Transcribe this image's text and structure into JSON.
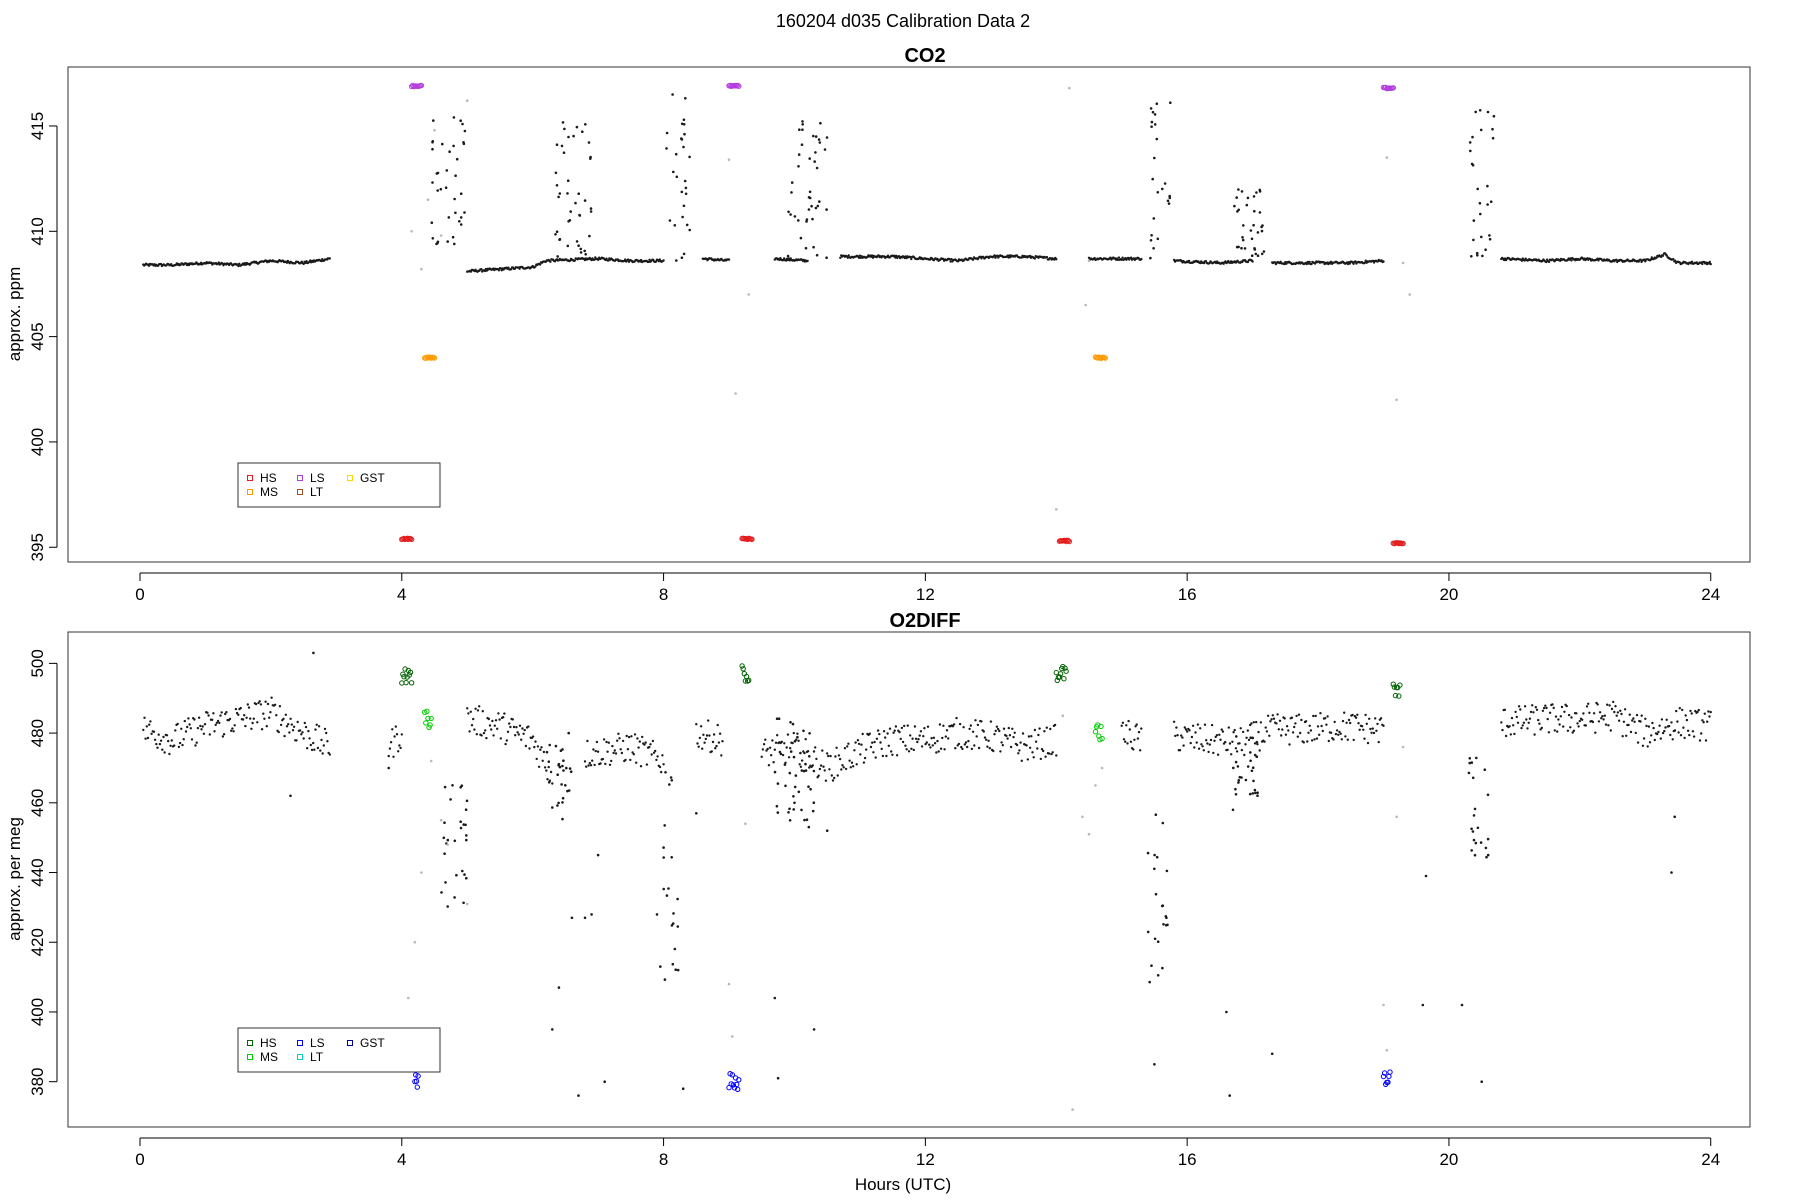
{
  "figure": {
    "title": "160204   d035   Calibration Data 2",
    "xlabel": "Hours (UTC)"
  },
  "chart_data": [
    {
      "id": "co2",
      "type": "scatter",
      "title": "CO2",
      "ylabel": "approx. ppm",
      "xlim": [
        -1.1,
        24.6
      ],
      "ylim": [
        394.3,
        417.8
      ],
      "xticks": [
        0,
        4,
        8,
        12,
        16,
        20,
        24
      ],
      "yticks": [
        395,
        400,
        405,
        410,
        415
      ],
      "legend": {
        "position": "bottom-left",
        "entries": [
          {
            "label": "HS",
            "color": "#e41a1c"
          },
          {
            "label": "MS",
            "color": "#ff9900"
          },
          {
            "label": "LS",
            "color": "#b33dde"
          },
          {
            "label": "LT",
            "color": "#a0522d"
          },
          {
            "label": "GST",
            "color": "#ffd700"
          }
        ]
      },
      "baseline": {
        "color": "#1a1a1a",
        "segments": [
          {
            "points": [
              [
                0.05,
                408.4
              ],
              [
                0.5,
                408.4
              ],
              [
                1.0,
                408.5
              ],
              [
                1.5,
                408.4
              ],
              [
                2.0,
                408.6
              ],
              [
                2.5,
                408.5
              ],
              [
                2.9,
                408.7
              ]
            ]
          },
          {
            "points": [
              [
                5.0,
                408.1
              ],
              [
                5.5,
                408.2
              ],
              [
                6.0,
                408.3
              ],
              [
                6.2,
                408.6
              ],
              [
                7.0,
                408.7
              ],
              [
                7.5,
                408.6
              ],
              [
                8.0,
                408.6
              ]
            ]
          },
          {
            "points": [
              [
                8.6,
                408.7
              ],
              [
                9.0,
                408.6
              ]
            ]
          },
          {
            "points": [
              [
                9.7,
                408.7
              ],
              [
                10.2,
                408.6
              ]
            ]
          },
          {
            "points": [
              [
                10.7,
                408.8
              ],
              [
                11.5,
                408.8
              ],
              [
                12.0,
                408.7
              ],
              [
                12.5,
                408.6
              ],
              [
                13.0,
                408.8
              ],
              [
                13.5,
                408.8
              ],
              [
                14.0,
                408.7
              ]
            ]
          },
          {
            "points": [
              [
                14.5,
                408.7
              ],
              [
                15.3,
                408.7
              ]
            ]
          },
          {
            "points": [
              [
                15.8,
                408.6
              ],
              [
                16.5,
                408.5
              ],
              [
                17.0,
                408.6
              ]
            ]
          },
          {
            "points": [
              [
                17.3,
                408.5
              ],
              [
                18.0,
                408.5
              ],
              [
                18.5,
                408.5
              ],
              [
                19.0,
                408.6
              ]
            ]
          },
          {
            "points": [
              [
                20.8,
                408.7
              ],
              [
                21.5,
                408.6
              ],
              [
                22.0,
                408.7
              ],
              [
                22.5,
                408.6
              ],
              [
                23.0,
                408.6
              ],
              [
                23.3,
                408.9
              ],
              [
                23.5,
                408.5
              ],
              [
                24.0,
                408.5
              ]
            ]
          }
        ]
      },
      "excursions": [
        {
          "x": [
            4.45,
            5.0
          ],
          "ylo": 409.3,
          "yhi": 415.6
        },
        {
          "x": [
            6.3,
            6.9
          ],
          "ylo": 408.6,
          "yhi": 415.2
        },
        {
          "x": [
            8.0,
            8.4
          ],
          "ylo": 408.6,
          "yhi": 417.3
        },
        {
          "x": [
            9.9,
            10.5
          ],
          "ylo": 408.7,
          "yhi": 415.8
        },
        {
          "x": [
            15.4,
            15.75
          ],
          "ylo": 408.7,
          "yhi": 417.2
        },
        {
          "x": [
            16.7,
            17.2
          ],
          "ylo": 408.8,
          "yhi": 412.0
        },
        {
          "x": [
            20.3,
            20.7
          ],
          "ylo": 408.8,
          "yhi": 416.0
        }
      ],
      "gray_points": [
        [
          4.15,
          410.0
        ],
        [
          4.3,
          408.2
        ],
        [
          4.4,
          411.5
        ],
        [
          4.5,
          414.8
        ],
        [
          4.6,
          409.8
        ],
        [
          5.0,
          416.2
        ],
        [
          9.0,
          413.4
        ],
        [
          9.1,
          402.3
        ],
        [
          9.3,
          407.0
        ],
        [
          14.0,
          396.8
        ],
        [
          14.2,
          416.8
        ],
        [
          14.45,
          406.5
        ],
        [
          14.5,
          408.6
        ],
        [
          19.05,
          413.5
        ],
        [
          19.2,
          402.0
        ],
        [
          19.3,
          408.5
        ],
        [
          19.4,
          407.0
        ]
      ],
      "cal_groups": [
        {
          "name": "LS",
          "color": "#b33dde",
          "x": [
            4.15,
            4.3
          ],
          "y": 416.9
        },
        {
          "name": "LS",
          "color": "#b33dde",
          "x": [
            9.0,
            9.15
          ],
          "y": 416.9
        },
        {
          "name": "LS",
          "color": "#b33dde",
          "x": [
            19.0,
            19.15
          ],
          "y": 416.8
        },
        {
          "name": "MS",
          "color": "#ff9900",
          "x": [
            4.35,
            4.5
          ],
          "y": 404.0
        },
        {
          "name": "MS",
          "color": "#ff9900",
          "x": [
            14.6,
            14.75
          ],
          "y": 404.0
        },
        {
          "name": "HS",
          "color": "#e41a1c",
          "x": [
            4.0,
            4.15
          ],
          "y": 395.4
        },
        {
          "name": "HS",
          "color": "#e41a1c",
          "x": [
            9.2,
            9.35
          ],
          "y": 395.4
        },
        {
          "name": "HS",
          "color": "#e41a1c",
          "x": [
            14.05,
            14.2
          ],
          "y": 395.3
        },
        {
          "name": "HS",
          "color": "#e41a1c",
          "x": [
            19.15,
            19.3
          ],
          "y": 395.2
        }
      ]
    },
    {
      "id": "o2diff",
      "type": "scatter",
      "title": "O2DIFF",
      "ylabel": "approx. per meg",
      "xlim": [
        -1.1,
        24.6
      ],
      "ylim": [
        367,
        509
      ],
      "xticks": [
        0,
        4,
        8,
        12,
        16,
        20,
        24
      ],
      "yticks": [
        380,
        400,
        420,
        440,
        460,
        480,
        500
      ],
      "legend": {
        "position": "bottom-left",
        "entries": [
          {
            "label": "HS",
            "color": "#006400"
          },
          {
            "label": "MS",
            "color": "#00cc00"
          },
          {
            "label": "LS",
            "color": "#0000ff"
          },
          {
            "label": "LT",
            "color": "#00cccc"
          },
          {
            "label": "GST",
            "color": "#000099"
          }
        ]
      },
      "baseline": {
        "color": "#1a1a1a",
        "segments": [
          {
            "points": [
              [
                0.05,
                481
              ],
              [
                0.5,
                478
              ],
              [
                1.0,
                482
              ],
              [
                1.5,
                484
              ],
              [
                2.0,
                486
              ],
              [
                2.5,
                480
              ],
              [
                2.9,
                476
              ]
            ]
          },
          {
            "points": [
              [
                3.8,
                476
              ],
              [
                4.0,
                480
              ]
            ]
          },
          {
            "points": [
              [
                5.0,
                484
              ],
              [
                5.5,
                482
              ],
              [
                6.0,
                478
              ],
              [
                6.3,
                468
              ]
            ]
          },
          {
            "points": [
              [
                6.8,
                474
              ],
              [
                7.5,
                476
              ],
              [
                8.0,
                472
              ]
            ]
          },
          {
            "points": [
              [
                8.5,
                480
              ],
              [
                8.9,
                478
              ]
            ]
          },
          {
            "points": [
              [
                9.5,
                474
              ],
              [
                10.0,
                476
              ],
              [
                10.5,
                470
              ],
              [
                11.0,
                475
              ],
              [
                11.5,
                478
              ],
              [
                12.0,
                478
              ],
              [
                12.5,
                480
              ],
              [
                13.0,
                479
              ],
              [
                13.5,
                476
              ],
              [
                14.0,
                478
              ]
            ]
          },
          {
            "points": [
              [
                15.0,
                480
              ],
              [
                15.3,
                478
              ]
            ]
          },
          {
            "points": [
              [
                15.8,
                479
              ],
              [
                16.3,
                478
              ],
              [
                16.8,
                477
              ],
              [
                17.3,
                481
              ],
              [
                17.8,
                481
              ],
              [
                18.3,
                482
              ],
              [
                19.0,
                481
              ]
            ]
          },
          {
            "points": [
              [
                20.8,
                483
              ],
              [
                21.5,
                484
              ],
              [
                22.0,
                484
              ],
              [
                22.5,
                485
              ],
              [
                23.0,
                480
              ],
              [
                23.5,
                483
              ],
              [
                24.0,
                482
              ]
            ]
          }
        ]
      },
      "excursions": [
        {
          "x": [
            4.6,
            5.0
          ],
          "ylo": 430,
          "yhi": 466
        },
        {
          "x": [
            6.2,
            6.6
          ],
          "ylo": 455,
          "yhi": 480
        },
        {
          "x": [
            8.0,
            8.3
          ],
          "ylo": 408,
          "yhi": 470
        },
        {
          "x": [
            9.7,
            10.3
          ],
          "ylo": 452,
          "yhi": 485
        },
        {
          "x": [
            15.4,
            15.7
          ],
          "ylo": 390,
          "yhi": 458
        },
        {
          "x": [
            16.7,
            17.1
          ],
          "ylo": 462,
          "yhi": 480
        },
        {
          "x": [
            20.3,
            20.6
          ],
          "ylo": 443,
          "yhi": 476
        }
      ],
      "sparse_points": [
        [
          2.3,
          462
        ],
        [
          2.65,
          503
        ],
        [
          3.8,
          470
        ],
        [
          6.3,
          395
        ],
        [
          6.4,
          407
        ],
        [
          6.6,
          427
        ],
        [
          6.7,
          376
        ],
        [
          6.8,
          427
        ],
        [
          6.9,
          428
        ],
        [
          7.0,
          445
        ],
        [
          7.1,
          380
        ],
        [
          7.9,
          428
        ],
        [
          7.95,
          413
        ],
        [
          8.3,
          378
        ],
        [
          8.5,
          457
        ],
        [
          9.7,
          404
        ],
        [
          9.75,
          381
        ],
        [
          10.0,
          460
        ],
        [
          10.3,
          395
        ],
        [
          10.5,
          452
        ],
        [
          15.5,
          385
        ],
        [
          15.7,
          425
        ],
        [
          16.6,
          400
        ],
        [
          16.65,
          376
        ],
        [
          16.7,
          458
        ],
        [
          17.3,
          388
        ],
        [
          19.6,
          402
        ],
        [
          19.65,
          439
        ],
        [
          20.2,
          402
        ],
        [
          20.5,
          380
        ],
        [
          20.6,
          445
        ],
        [
          23.4,
          440
        ],
        [
          23.45,
          456
        ]
      ],
      "gray_points": [
        [
          4.1,
          404
        ],
        [
          4.2,
          420
        ],
        [
          4.3,
          440
        ],
        [
          4.45,
          472
        ],
        [
          4.6,
          455
        ],
        [
          4.7,
          448
        ],
        [
          5.0,
          431
        ],
        [
          9.0,
          408
        ],
        [
          9.05,
          393
        ],
        [
          9.25,
          454
        ],
        [
          14.1,
          485
        ],
        [
          14.25,
          372
        ],
        [
          14.4,
          456
        ],
        [
          14.5,
          451
        ],
        [
          14.6,
          465
        ],
        [
          14.7,
          470
        ],
        [
          19.0,
          402
        ],
        [
          19.05,
          389
        ],
        [
          19.2,
          456
        ],
        [
          19.3,
          476
        ]
      ],
      "cal_groups": [
        {
          "name": "HS",
          "color": "#006400",
          "x": [
            4.0,
            4.15
          ],
          "y": 496
        },
        {
          "name": "HS",
          "color": "#006400",
          "x": [
            9.2,
            9.3
          ],
          "y": 497
        },
        {
          "name": "HS",
          "color": "#006400",
          "x": [
            14.0,
            14.15
          ],
          "y": 497
        },
        {
          "name": "HS",
          "color": "#006400",
          "x": [
            19.15,
            19.25
          ],
          "y": 492
        },
        {
          "name": "MS",
          "color": "#00cc00",
          "x": [
            4.35,
            4.45
          ],
          "y": 484
        },
        {
          "name": "MS",
          "color": "#00cc00",
          "x": [
            14.6,
            14.7
          ],
          "y": 480
        },
        {
          "name": "LS",
          "color": "#0000ff",
          "x": [
            4.2,
            4.25
          ],
          "y": 380
        },
        {
          "name": "LS",
          "color": "#0000ff",
          "x": [
            9.0,
            9.15
          ],
          "y": 380
        },
        {
          "name": "LS",
          "color": "#0000ff",
          "x": [
            19.0,
            19.1
          ],
          "y": 381
        }
      ]
    }
  ]
}
